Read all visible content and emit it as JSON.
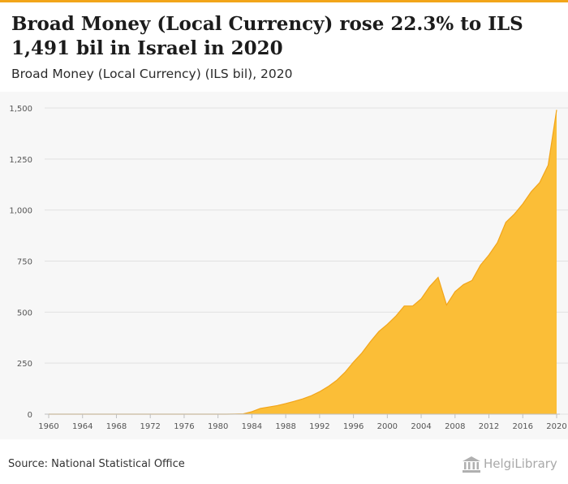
{
  "header": {
    "title": "Broad Money (Local Currency) rose 22.3% to ILS 1,491 bil in Israel in 2020",
    "subtitle": "Broad Money (Local Currency) (ILS bil), 2020"
  },
  "footer": {
    "source": "Source: National Statistical Office",
    "logo_text": "HelgiLibrary"
  },
  "colors": {
    "area_fill": "#fbbe37",
    "area_line": "#f2a51a",
    "grid": "#e1e1e1",
    "axis_text": "#555555",
    "chart_background": "#f7f7f7"
  },
  "chart_data": {
    "type": "area",
    "title": "Broad Money (Local Currency) rose 22.3% to ILS 1,491 bil in Israel in 2020",
    "subtitle": "Broad Money (Local Currency) (ILS bil), 2020",
    "xlabel": "",
    "ylabel": "",
    "x": [
      1960,
      1961,
      1962,
      1963,
      1964,
      1965,
      1966,
      1967,
      1968,
      1969,
      1970,
      1971,
      1972,
      1973,
      1974,
      1975,
      1976,
      1977,
      1978,
      1979,
      1980,
      1981,
      1982,
      1983,
      1984,
      1985,
      1986,
      1987,
      1988,
      1989,
      1990,
      1991,
      1992,
      1993,
      1994,
      1995,
      1996,
      1997,
      1998,
      1999,
      2000,
      2001,
      2002,
      2003,
      2004,
      2005,
      2006,
      2007,
      2008,
      2009,
      2010,
      2011,
      2012,
      2013,
      2014,
      2015,
      2016,
      2017,
      2018,
      2019,
      2020
    ],
    "series": [
      {
        "values": [
          0,
          0,
          0,
          0,
          0,
          0,
          0,
          0,
          0,
          0,
          0,
          0,
          0,
          0,
          0,
          0,
          0,
          0,
          0,
          0,
          0,
          0,
          0.5,
          1.5,
          12,
          28,
          35,
          42,
          52,
          63,
          75,
          90,
          110,
          135,
          165,
          205,
          255,
          300,
          355,
          405,
          440,
          480,
          530,
          530,
          565,
          625,
          670,
          535,
          600,
          635,
          655,
          730,
          780,
          840,
          940,
          980,
          1030,
          1090,
          1135,
          1220,
          1491
        ]
      }
    ],
    "yticks": [
      0,
      250,
      500,
      750,
      1000,
      1250,
      1500
    ],
    "ytick_labels": [
      "0",
      "250",
      "500",
      "750",
      "1,000",
      "1,250",
      "1,500"
    ],
    "xticks": [
      1960,
      1964,
      1968,
      1972,
      1976,
      1980,
      1984,
      1988,
      1992,
      1996,
      2000,
      2004,
      2008,
      2012,
      2016,
      2020
    ],
    "ylim": [
      0,
      1500
    ],
    "xlim": [
      1960,
      2020
    ],
    "grid": "horizontal",
    "legend": "none"
  }
}
